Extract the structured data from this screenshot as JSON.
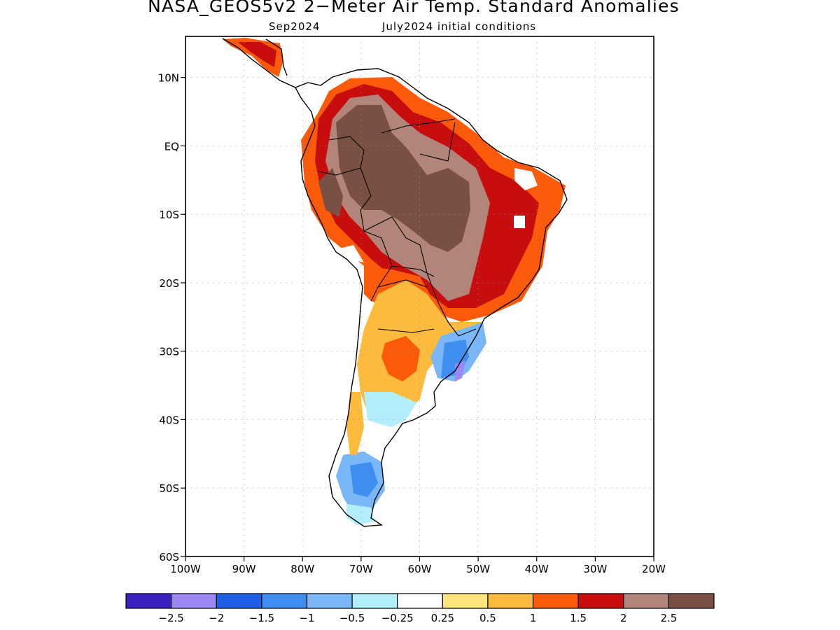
{
  "title": "NASA_GEOS5v2 2−Meter Air Temp. Standard Anomalies",
  "subtitle_left": "Sep2024",
  "subtitle_right": "July2024 initial conditions",
  "map": {
    "lon_range": [
      -100,
      -20
    ],
    "lat_range": [
      -60,
      16
    ],
    "x_ticks": [
      "100W",
      "90W",
      "80W",
      "70W",
      "60W",
      "50W",
      "40W",
      "30W",
      "20W"
    ],
    "y_ticks": [
      "10N",
      "EQ",
      "10S",
      "20S",
      "30S",
      "40S",
      "50S",
      "60S"
    ],
    "grid": "dotted"
  },
  "colorbar": {
    "labels": [
      "−2.5",
      "−2",
      "−1.5",
      "−1",
      "−0.5",
      "−0.25",
      "0.25",
      "0.5",
      "1",
      "1.5",
      "2",
      "2.5"
    ],
    "colors": [
      "#3b1fbf",
      "#9d87f5",
      "#1f5fe8",
      "#3d8ef0",
      "#79b7f8",
      "#b3eefc",
      "#ffffff",
      "#ffe57c",
      "#fdbb3d",
      "#fa5a0a",
      "#c70d0d",
      "#b3857a",
      "#7a5044"
    ]
  },
  "chart_data": {
    "type": "heatmap",
    "title": "NASA_GEOS5v2 2−Meter Air Temp. Standard Anomalies",
    "subtitle": "Sep2024 July2024 initial conditions",
    "xlim": [
      -100,
      -20
    ],
    "ylim": [
      -60,
      16
    ],
    "levels": [
      -2.5,
      -2,
      -1.5,
      -1,
      -0.5,
      -0.25,
      0.25,
      0.5,
      1,
      1.5,
      2,
      2.5
    ]
  }
}
